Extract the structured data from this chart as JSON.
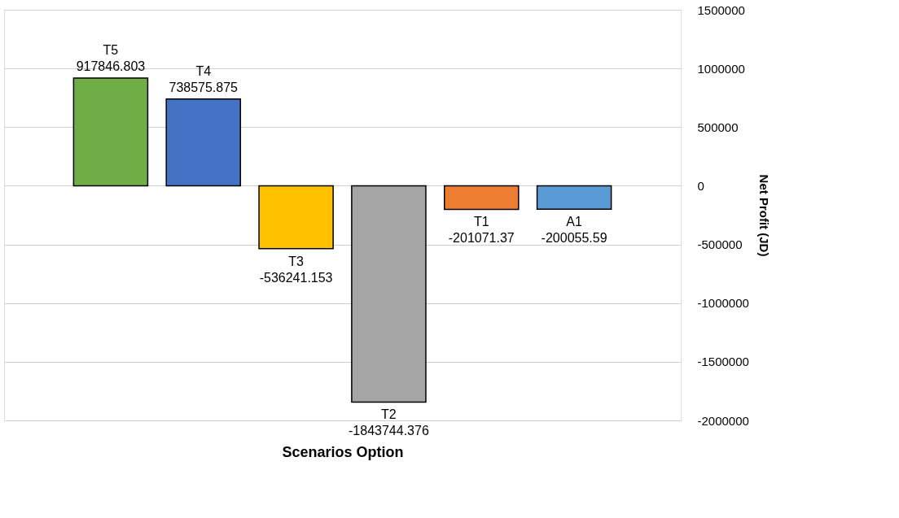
{
  "chart_data": {
    "type": "bar",
    "xlabel": "Scenarios Option",
    "ylabel": "Net Profit (JD)",
    "categories": [
      "T5",
      "T4",
      "T3",
      "T2",
      "T1",
      "A1"
    ],
    "values": [
      917846.803,
      738575.875,
      -536241.153,
      -1843744.376,
      -201071.37,
      -200055.59
    ],
    "value_labels": [
      "917846.803",
      "738575.875",
      "-536241.153",
      "-1843744.376",
      "-201071.37",
      "-200055.59"
    ],
    "colors": [
      "#70ad47",
      "#4472c4",
      "#ffc000",
      "#a5a5a5",
      "#ed7d31",
      "#5b9bd5"
    ],
    "ylim": [
      -2000000,
      1500000
    ],
    "yticks": [
      -2000000,
      -1500000,
      -1000000,
      -500000,
      0,
      500000,
      1000000,
      1500000
    ],
    "grid": "y",
    "tick_labels": "y"
  }
}
